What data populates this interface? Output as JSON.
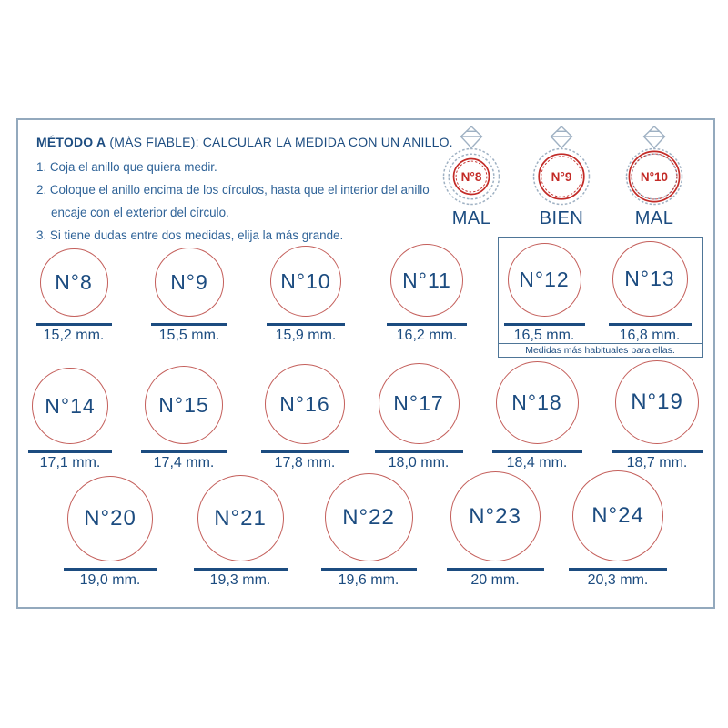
{
  "page": {
    "title_bold": "MÉTODO A",
    "title_rest": "(MÁS FIABLE): CALCULAR LA MEDIDA CON UN ANILLO.",
    "steps": [
      "1. Coja el anillo que quiera medir.",
      "2. Coloque el anillo encima de los círculos, hasta que el interior del anillo encaje con el exterior del círculo.",
      "3. Si tiene dudas entre dos medidas, elija la más grande."
    ],
    "favorites_note": "Medidas más habituales para ellas."
  },
  "ring_examples": [
    {
      "label": "N°8",
      "verdict": "MAL",
      "fit": "small"
    },
    {
      "label": "N°9",
      "verdict": "BIEN",
      "fit": "exact"
    },
    {
      "label": "N°10",
      "verdict": "MAL",
      "fit": "large"
    }
  ],
  "size_rows": [
    [
      {
        "label": "N°8",
        "mm": 15.2,
        "mm_label": "15,2 mm."
      },
      {
        "label": "N°9",
        "mm": 15.5,
        "mm_label": "15,5 mm."
      },
      {
        "label": "N°10",
        "mm": 15.9,
        "mm_label": "15,9 mm."
      },
      {
        "label": "N°11",
        "mm": 16.2,
        "mm_label": "16,2 mm."
      },
      {
        "label": "N°12",
        "mm": 16.5,
        "mm_label": "16,5 mm."
      },
      {
        "label": "N°13",
        "mm": 16.8,
        "mm_label": "16,8 mm."
      }
    ],
    [
      {
        "label": "N°14",
        "mm": 17.1,
        "mm_label": "17,1 mm."
      },
      {
        "label": "N°15",
        "mm": 17.4,
        "mm_label": "17,4 mm."
      },
      {
        "label": "N°16",
        "mm": 17.8,
        "mm_label": "17,8 mm."
      },
      {
        "label": "N°17",
        "mm": 18.0,
        "mm_label": "18,0 mm."
      },
      {
        "label": "N°18",
        "mm": 18.4,
        "mm_label": "18,4 mm."
      },
      {
        "label": "N°19",
        "mm": 18.7,
        "mm_label": "18,7 mm."
      }
    ],
    [
      {
        "label": "N°20",
        "mm": 19.0,
        "mm_label": "19,0 mm."
      },
      {
        "label": "N°21",
        "mm": 19.3,
        "mm_label": "19,3 mm."
      },
      {
        "label": "N°22",
        "mm": 19.6,
        "mm_label": "19,6 mm."
      },
      {
        "label": "N°23",
        "mm": 20.0,
        "mm_label": "20 mm."
      },
      {
        "label": "N°24",
        "mm": 20.3,
        "mm_label": "20,3 mm."
      }
    ]
  ],
  "colors": {
    "navy": "#1c4c80",
    "step_blue": "#2f6398",
    "circle_red": "#c45f5b",
    "ring_red": "#c32b27",
    "ring_band": "#9fb1c3",
    "frame_border": "#93a9bd",
    "fav_border": "#4e7597"
  }
}
